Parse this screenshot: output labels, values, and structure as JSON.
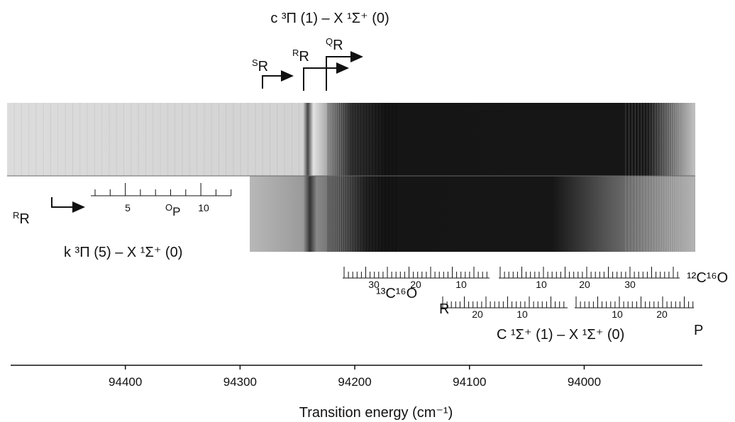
{
  "chart_data": {
    "type": "spectrum",
    "xlabel": "Transition energy (cm⁻¹)",
    "xlim": [
      94500,
      93897
    ],
    "xticks": [
      94400,
      94300,
      94200,
      94100,
      94000
    ],
    "band_c": "c ³Π (1) – X ¹Σ⁺ (0)",
    "band_k": "k ³Π (5) – X ¹Σ⁺ (0)",
    "band_C": "C ¹Σ⁺ (1) – X ¹Σ⁺ (0)",
    "branch_SR": {
      "sup": "S",
      "main": "R"
    },
    "branch_RR_c": {
      "sup": "R",
      "main": "R"
    },
    "branch_QR": {
      "sup": "Q",
      "main": "R"
    },
    "branch_RR_k": {
      "sup": "R",
      "main": "R"
    },
    "branch_OP": {
      "sup": "O",
      "main": "P"
    },
    "k_scale_labels": [
      5,
      10
    ],
    "isotope_12": "¹²C¹⁶O",
    "isotope_13": "¹³C¹⁶O",
    "ladder_12_R_labels": [
      30,
      20,
      10
    ],
    "ladder_12_P_labels": [
      10,
      20,
      30
    ],
    "ladder_13_R_labels": [
      20,
      10
    ],
    "ladder_13_P_labels": [
      10,
      20
    ],
    "label_R": "R",
    "label_P": "P"
  }
}
